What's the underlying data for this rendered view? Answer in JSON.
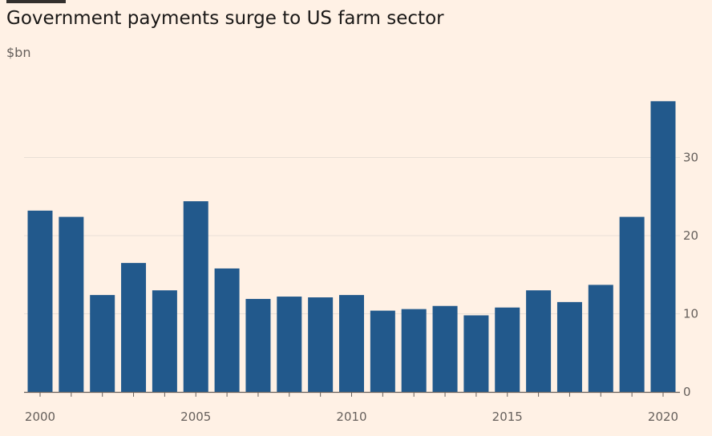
{
  "chart_data": {
    "type": "bar",
    "title": "Government payments surge to US farm sector",
    "subtitle": "$bn",
    "xlabel": "",
    "ylabel": "",
    "categories": [
      "2000",
      "2001",
      "2002",
      "2003",
      "2004",
      "2005",
      "2006",
      "2007",
      "2008",
      "2009",
      "2010",
      "2011",
      "2012",
      "2013",
      "2014",
      "2015",
      "2016",
      "2017",
      "2018",
      "2019",
      "2020"
    ],
    "values": [
      23.2,
      22.4,
      12.4,
      16.5,
      13.0,
      24.4,
      15.8,
      11.9,
      12.2,
      12.1,
      12.4,
      10.4,
      10.6,
      11.0,
      9.8,
      10.8,
      13.0,
      11.5,
      13.7,
      22.4,
      37.2
    ],
    "ylim": [
      0,
      40
    ],
    "yticks": [
      0,
      10,
      20,
      30
    ],
    "xticks": [
      "2000",
      "2005",
      "2010",
      "2015",
      "2020"
    ],
    "y_axis_side": "right",
    "grid": true,
    "colors": {
      "bar": "#22598C",
      "grid": "#E9DFD6",
      "axis": "#66605C",
      "background": "#FFF1E5"
    }
  }
}
